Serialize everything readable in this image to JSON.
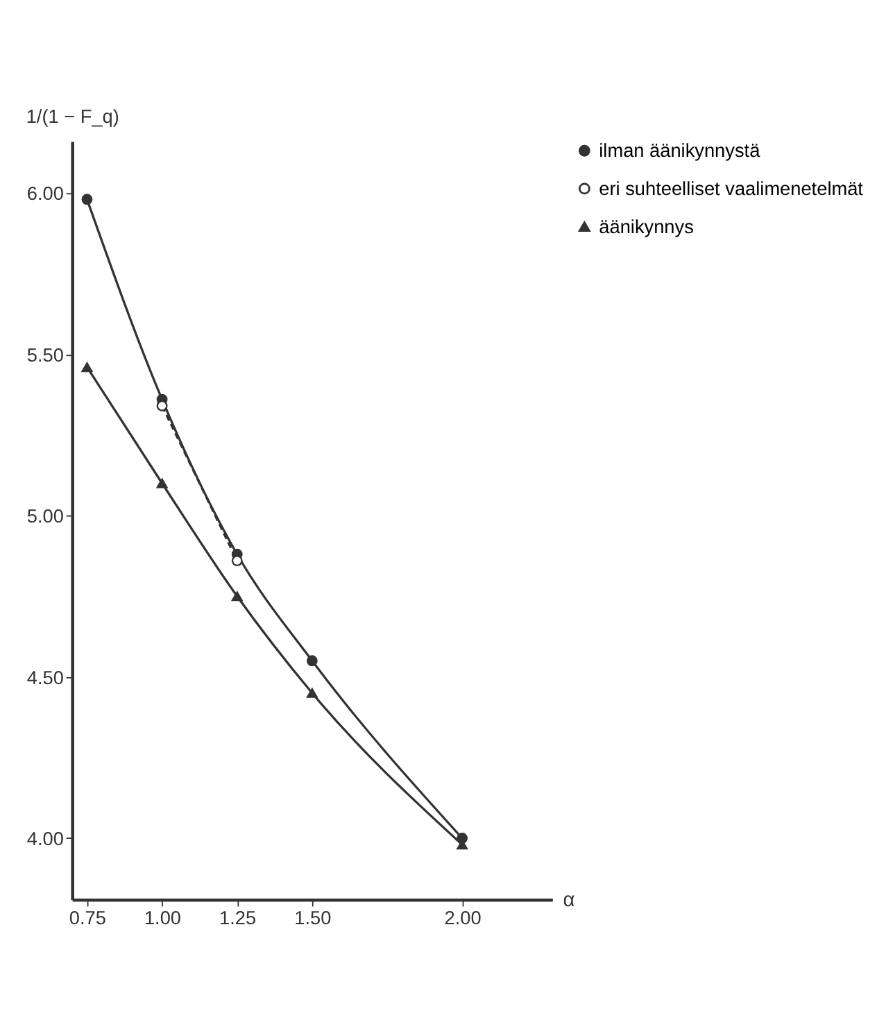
{
  "chart_data": {
    "type": "line",
    "xlabel": "α",
    "ylabel": "1/(1 − F_q)",
    "xlim": [
      0.7,
      2.3
    ],
    "ylim": [
      3.81,
      6.16
    ],
    "xticks": [
      {
        "value": 0.75,
        "label": "0.75"
      },
      {
        "value": 1.0,
        "label": "1.00"
      },
      {
        "value": 1.25,
        "label": "1.25"
      },
      {
        "value": 1.5,
        "label": "1.50"
      },
      {
        "value": 2.0,
        "label": "2.00"
      }
    ],
    "yticks": [
      {
        "value": 4.0,
        "label": "4.00"
      },
      {
        "value": 4.5,
        "label": "4.50"
      },
      {
        "value": 5.0,
        "label": "5.00"
      },
      {
        "value": 5.5,
        "label": "5.50"
      },
      {
        "value": 6.0,
        "label": "6.00"
      }
    ],
    "grid": false,
    "legend": "right",
    "series": [
      {
        "name": "ilman äänikynnystä",
        "color": "#333333",
        "marker": "circle",
        "line_style": "solid",
        "x": [
          0.75,
          1.0,
          1.25,
          1.5,
          2.0
        ],
        "values": [
          5.98,
          5.36,
          4.88,
          4.55,
          4.0
        ]
      },
      {
        "name": "eri suhteelliset vaalimenetelmät",
        "color": "#333333",
        "marker": "open circle",
        "line_style": "dashed",
        "x": [
          1.0,
          1.25
        ],
        "values": [
          5.34,
          4.86
        ]
      },
      {
        "name": "äänikynnys",
        "color": "#333333",
        "marker": "triangle",
        "line_style": "solid",
        "x": [
          0.75,
          1.0,
          1.25,
          1.5,
          2.0
        ],
        "values": [
          5.46,
          5.1,
          4.75,
          4.45,
          3.98
        ]
      }
    ]
  }
}
